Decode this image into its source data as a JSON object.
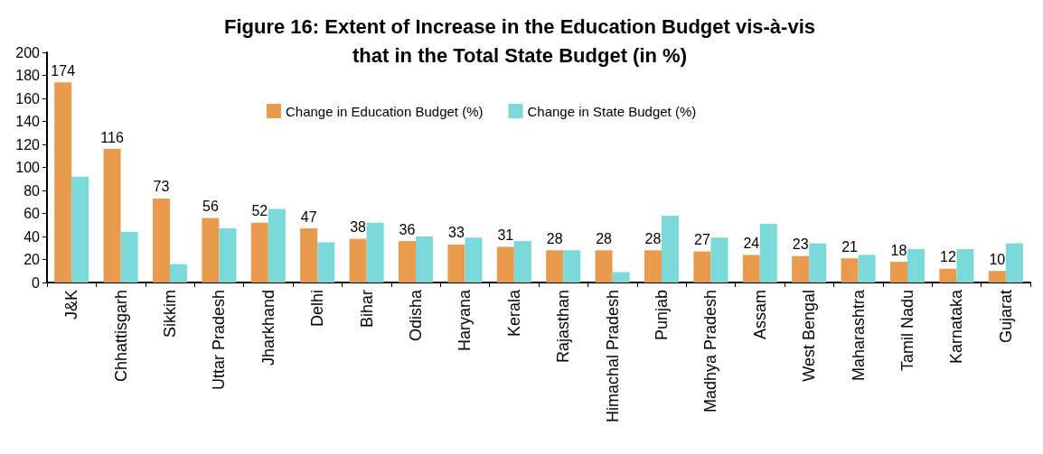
{
  "chart_data": {
    "type": "bar",
    "title": "Figure 16: Extent of Increase in the Education Budget vis-à-vis\nthat in the Total State Budget (in %)",
    "categories": [
      "J&K",
      "Chhattisgarh",
      "Sikkim",
      "Uttar Pradesh",
      "Jharkhand",
      "Delhi",
      "Bihar",
      "Odisha",
      "Haryana",
      "Kerala",
      "Rajasthan",
      "Himachal Pradesh",
      "Punjab",
      "Madhya Pradesh",
      "Assam",
      "West Bengal",
      "Maharashtra",
      "Tamil Nadu",
      "Karnataka",
      "Gujarat"
    ],
    "series": [
      {
        "name": "Change in Education Budget (%)",
        "color": "#e99b4d",
        "values": [
          174,
          116,
          73,
          56,
          52,
          47,
          38,
          36,
          33,
          31,
          28,
          28,
          28,
          27,
          24,
          23,
          21,
          18,
          12,
          10
        ],
        "value_labels": [
          "174",
          "116",
          "73",
          "56",
          "52",
          "47",
          "38",
          "36",
          "33",
          "31",
          "28",
          "28",
          "28",
          "27",
          "24",
          "23",
          "21",
          "18",
          "12",
          "10"
        ]
      },
      {
        "name": "Change in State Budget (%)",
        "color": "#7adada",
        "values": [
          92,
          44,
          16,
          47,
          64,
          35,
          52,
          40,
          39,
          36,
          28,
          9,
          58,
          39,
          51,
          34,
          24,
          29,
          29,
          34
        ]
      }
    ],
    "ylim": [
      0,
      200
    ],
    "yticks": [
      0,
      20,
      40,
      60,
      80,
      100,
      120,
      140,
      160,
      180,
      200
    ],
    "grid": false,
    "legend": "top"
  }
}
